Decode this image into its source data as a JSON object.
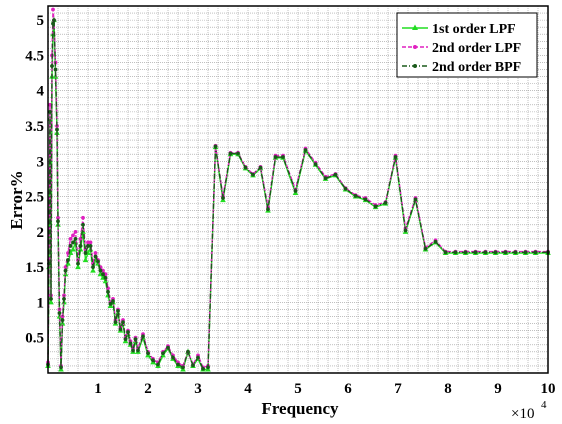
{
  "chart_data": {
    "type": "line",
    "title": "",
    "xlabel": "Frequency",
    "ylabel": "Error%",
    "x_multiplier_label": "×10",
    "x_multiplier_exp": "4",
    "xlim": [
      0,
      10
    ],
    "ylim": [
      0,
      5.2
    ],
    "x_ticks": [
      1,
      2,
      3,
      4,
      5,
      6,
      7,
      8,
      9,
      10
    ],
    "y_ticks": [
      0.5,
      1,
      1.5,
      2,
      2.5,
      3,
      3.5,
      4,
      4.5,
      5
    ],
    "grid": true,
    "legend_position": "top-right",
    "series": [
      {
        "name": "1st order LPF",
        "color": "#22dd22",
        "marker": "triangle",
        "line": "solid",
        "x": [
          0.0,
          0.02,
          0.04,
          0.06,
          0.08,
          0.1,
          0.12,
          0.15,
          0.18,
          0.2,
          0.23,
          0.26,
          0.29,
          0.32,
          0.35,
          0.4,
          0.45,
          0.5,
          0.55,
          0.6,
          0.65,
          0.7,
          0.75,
          0.8,
          0.85,
          0.9,
          0.95,
          1.0,
          1.05,
          1.1,
          1.15,
          1.2,
          1.25,
          1.3,
          1.35,
          1.4,
          1.45,
          1.5,
          1.55,
          1.6,
          1.65,
          1.7,
          1.75,
          1.8,
          1.9,
          2.0,
          2.1,
          2.2,
          2.3,
          2.4,
          2.5,
          2.6,
          2.7,
          2.8,
          2.9,
          3.0,
          3.1,
          3.2,
          3.35,
          3.5,
          3.65,
          3.8,
          3.95,
          4.1,
          4.25,
          4.4,
          4.55,
          4.7,
          4.95,
          5.15,
          5.35,
          5.55,
          5.75,
          5.95,
          6.15,
          6.35,
          6.55,
          6.75,
          6.95,
          7.15,
          7.35,
          7.55,
          7.75,
          7.95,
          8.15,
          8.35,
          8.55,
          8.75,
          8.95,
          9.15,
          9.35,
          9.55,
          9.75,
          10.0
        ],
        "y": [
          0.1,
          1.5,
          3.6,
          1.0,
          4.2,
          4.8,
          5.0,
          4.2,
          3.4,
          2.1,
          0.8,
          0.05,
          0.7,
          1.0,
          1.4,
          1.55,
          1.7,
          1.75,
          1.85,
          1.5,
          1.75,
          2.0,
          1.6,
          1.7,
          1.75,
          1.45,
          1.6,
          1.55,
          1.4,
          1.35,
          1.3,
          1.1,
          0.95,
          1.0,
          0.7,
          0.85,
          0.6,
          0.7,
          0.45,
          0.55,
          0.4,
          0.3,
          0.45,
          0.3,
          0.5,
          0.25,
          0.15,
          0.1,
          0.25,
          0.35,
          0.2,
          0.1,
          0.05,
          0.3,
          0.1,
          0.2,
          0.05,
          0.05,
          3.2,
          2.45,
          3.1,
          3.1,
          2.9,
          2.8,
          2.9,
          2.3,
          3.05,
          3.05,
          2.55,
          3.15,
          2.95,
          2.75,
          2.8,
          2.6,
          2.5,
          2.45,
          2.35,
          2.4,
          3.05,
          2.0,
          2.45,
          1.75,
          1.85,
          1.7,
          1.7,
          1.7,
          1.7,
          1.7,
          1.7,
          1.7,
          1.7,
          1.7,
          1.7,
          1.7
        ]
      },
      {
        "name": "2nd order LPF",
        "color": "#e020c0",
        "marker": "dot",
        "line": "dashed",
        "x": [
          0.0,
          0.02,
          0.04,
          0.06,
          0.08,
          0.1,
          0.12,
          0.15,
          0.18,
          0.2,
          0.23,
          0.26,
          0.29,
          0.32,
          0.35,
          0.4,
          0.45,
          0.5,
          0.55,
          0.6,
          0.65,
          0.7,
          0.75,
          0.8,
          0.85,
          0.9,
          0.95,
          1.0,
          1.05,
          1.1,
          1.15,
          1.2,
          1.25,
          1.3,
          1.35,
          1.4,
          1.45,
          1.5,
          1.55,
          1.6,
          1.65,
          1.7,
          1.75,
          1.8,
          1.9,
          2.0,
          2.1,
          2.2,
          2.3,
          2.4,
          2.5,
          2.6,
          2.7,
          2.8,
          2.9,
          3.0,
          3.1,
          3.2,
          3.35,
          3.5,
          3.65,
          3.8,
          3.95,
          4.1,
          4.25,
          4.4,
          4.55,
          4.7,
          4.95,
          5.15,
          5.35,
          5.55,
          5.75,
          5.95,
          6.15,
          6.35,
          6.55,
          6.75,
          6.95,
          7.15,
          7.35,
          7.55,
          7.75,
          7.95,
          8.15,
          8.35,
          8.55,
          8.75,
          8.95,
          9.15,
          9.35,
          9.55,
          9.75,
          10.0
        ],
        "y": [
          0.15,
          1.6,
          3.8,
          1.1,
          4.5,
          5.15,
          5.0,
          4.4,
          3.5,
          2.2,
          0.9,
          0.1,
          0.8,
          1.1,
          1.5,
          1.7,
          1.9,
          1.95,
          2.0,
          1.6,
          1.9,
          2.2,
          1.75,
          1.85,
          1.85,
          1.55,
          1.7,
          1.6,
          1.5,
          1.45,
          1.4,
          1.2,
          1.0,
          1.05,
          0.75,
          0.9,
          0.65,
          0.75,
          0.5,
          0.6,
          0.45,
          0.35,
          0.5,
          0.35,
          0.55,
          0.3,
          0.2,
          0.15,
          0.3,
          0.38,
          0.25,
          0.15,
          0.1,
          0.3,
          0.12,
          0.25,
          0.08,
          0.1,
          3.22,
          2.5,
          3.12,
          3.12,
          2.92,
          2.82,
          2.92,
          2.35,
          3.08,
          3.08,
          2.6,
          3.18,
          2.98,
          2.78,
          2.82,
          2.62,
          2.52,
          2.48,
          2.38,
          2.42,
          3.08,
          2.05,
          2.48,
          1.78,
          1.88,
          1.72,
          1.72,
          1.72,
          1.72,
          1.72,
          1.72,
          1.72,
          1.72,
          1.72,
          1.72,
          1.72
        ]
      },
      {
        "name": "2nd order BPF",
        "color": "#1a5a1a",
        "marker": "dot",
        "line": "dash-dot",
        "x": [
          0.0,
          0.02,
          0.04,
          0.06,
          0.08,
          0.1,
          0.12,
          0.15,
          0.18,
          0.2,
          0.23,
          0.26,
          0.29,
          0.32,
          0.35,
          0.4,
          0.45,
          0.5,
          0.55,
          0.6,
          0.65,
          0.7,
          0.75,
          0.8,
          0.85,
          0.9,
          0.95,
          1.0,
          1.05,
          1.1,
          1.15,
          1.2,
          1.25,
          1.3,
          1.35,
          1.4,
          1.45,
          1.5,
          1.55,
          1.6,
          1.65,
          1.7,
          1.75,
          1.8,
          1.9,
          2.0,
          2.1,
          2.2,
          2.3,
          2.4,
          2.5,
          2.6,
          2.7,
          2.8,
          2.9,
          3.0,
          3.1,
          3.2,
          3.35,
          3.5,
          3.65,
          3.8,
          3.95,
          4.1,
          4.25,
          4.4,
          4.55,
          4.7,
          4.95,
          5.15,
          5.35,
          5.55,
          5.75,
          5.95,
          6.15,
          6.35,
          6.55,
          6.75,
          6.95,
          7.15,
          7.35,
          7.55,
          7.75,
          7.95,
          8.15,
          8.35,
          8.55,
          8.75,
          8.95,
          9.15,
          9.35,
          9.55,
          9.75,
          10.0
        ],
        "y": [
          0.12,
          1.55,
          3.7,
          1.05,
          4.35,
          4.95,
          5.0,
          4.3,
          3.45,
          2.15,
          0.85,
          0.08,
          0.75,
          1.05,
          1.45,
          1.6,
          1.8,
          1.85,
          1.9,
          1.55,
          1.8,
          2.1,
          1.7,
          1.8,
          1.8,
          1.5,
          1.65,
          1.58,
          1.45,
          1.4,
          1.35,
          1.15,
          0.98,
          1.02,
          0.72,
          0.88,
          0.62,
          0.72,
          0.48,
          0.58,
          0.42,
          0.32,
          0.48,
          0.32,
          0.52,
          0.28,
          0.18,
          0.12,
          0.28,
          0.36,
          0.22,
          0.12,
          0.08,
          0.3,
          0.11,
          0.22,
          0.06,
          0.08,
          3.21,
          2.48,
          3.11,
          3.11,
          2.91,
          2.81,
          2.91,
          2.32,
          3.06,
          3.06,
          2.58,
          3.16,
          2.96,
          2.76,
          2.81,
          2.61,
          2.51,
          2.46,
          2.36,
          2.41,
          3.06,
          2.02,
          2.46,
          1.76,
          1.86,
          1.71,
          1.71,
          1.71,
          1.71,
          1.71,
          1.71,
          1.71,
          1.71,
          1.71,
          1.71,
          1.71
        ]
      }
    ]
  }
}
